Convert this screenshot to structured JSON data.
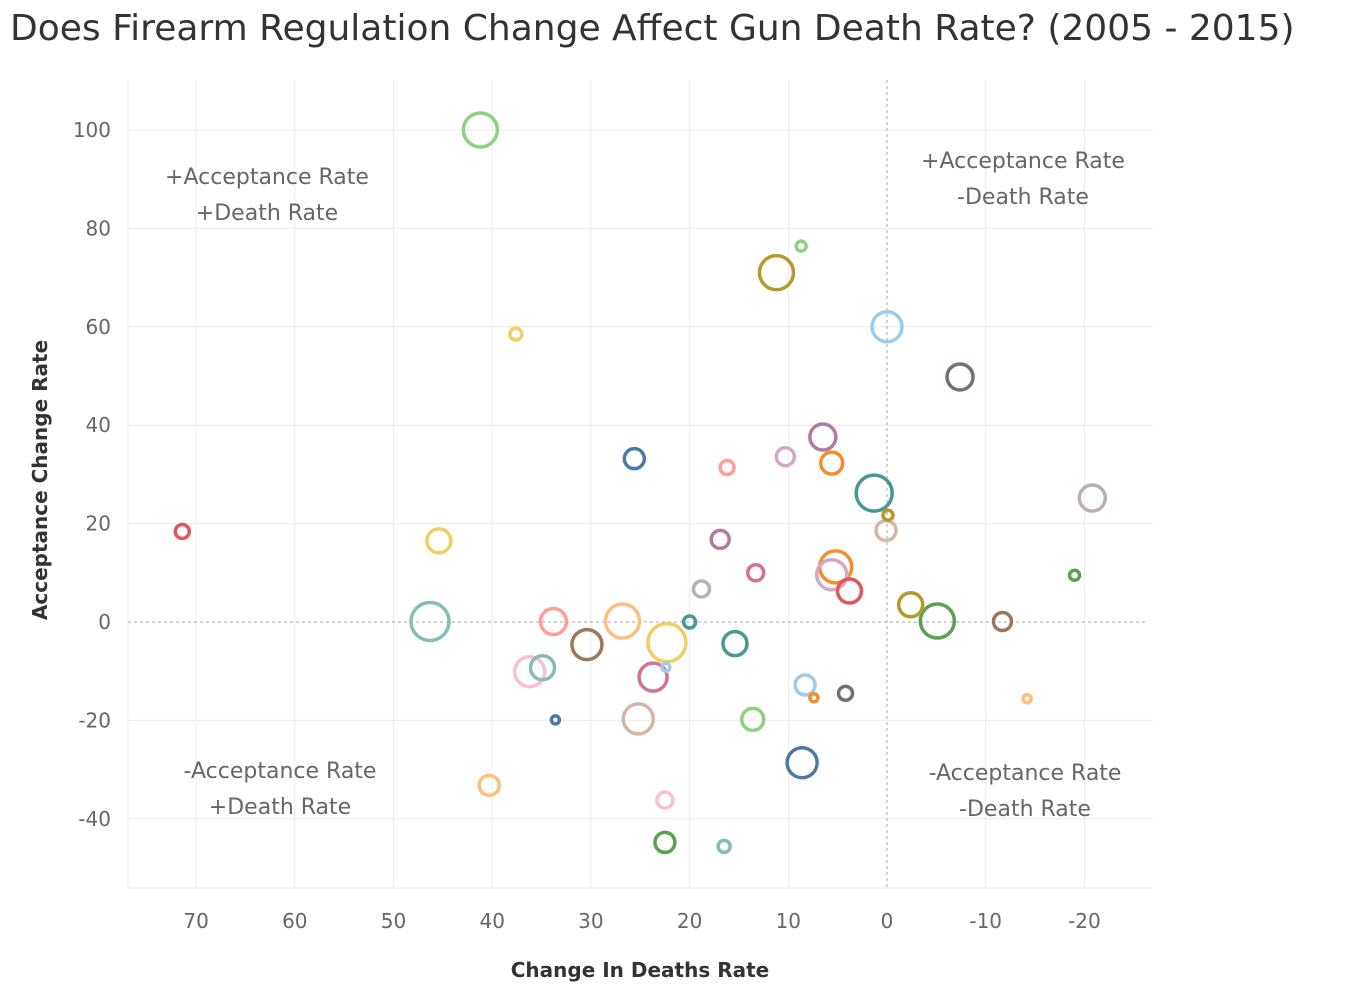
{
  "chart_data": {
    "type": "scatter",
    "title": "Does Firearm Regulation Change Affect Gun Death Rate? (2005 - 2015)",
    "xlabel": "Change In Deaths Rate",
    "ylabel": "Acceptance Change Rate",
    "xlim": [
      77,
      -27
    ],
    "ylim": [
      -55,
      110
    ],
    "x_reversed": true,
    "xticks": [
      70,
      60,
      50,
      40,
      30,
      20,
      10,
      0,
      -10,
      -20
    ],
    "yticks": [
      100,
      80,
      60,
      40,
      20,
      0,
      -20,
      -40
    ],
    "reference_lines": {
      "x": 0,
      "y": 0
    },
    "quadrant_labels": [
      {
        "line1": "+Acceptance Rate",
        "line2": "+Death Rate",
        "position": "top-left"
      },
      {
        "line1": "+Acceptance Rate",
        "line2": "-Death Rate",
        "position": "top-right"
      },
      {
        "line1": "-Acceptance Rate",
        "line2": "+Death Rate",
        "position": "bottom-left"
      },
      {
        "line1": "-Acceptance Rate",
        "line2": "-Death Rate",
        "position": "bottom-right"
      }
    ],
    "points": [
      {
        "x": 41.2,
        "y": 100.0,
        "size": 17,
        "color": "#8cd17d"
      },
      {
        "x": 8.7,
        "y": 76.4,
        "size": 5,
        "color": "#8cd17d"
      },
      {
        "x": 11.2,
        "y": 71.0,
        "size": 17,
        "color": "#b6992d"
      },
      {
        "x": 37.6,
        "y": 58.5,
        "size": 6,
        "color": "#f1ce63"
      },
      {
        "x": 0.0,
        "y": 60.0,
        "size": 15,
        "color": "#a0cbe8"
      },
      {
        "x": -7.4,
        "y": 49.8,
        "size": 13,
        "color": "#79706e"
      },
      {
        "x": 6.5,
        "y": 37.6,
        "size": 13,
        "color": "#b07aa1"
      },
      {
        "x": 25.6,
        "y": 33.2,
        "size": 10,
        "color": "#4e79a7"
      },
      {
        "x": 16.2,
        "y": 31.4,
        "size": 7,
        "color": "#ff9d9a"
      },
      {
        "x": 10.3,
        "y": 33.6,
        "size": 9,
        "color": "#d4a6c8"
      },
      {
        "x": 5.6,
        "y": 32.3,
        "size": 11,
        "color": "#f28e2b"
      },
      {
        "x": 1.3,
        "y": 26.2,
        "size": 18,
        "color": "#499894"
      },
      {
        "x": -20.8,
        "y": 25.2,
        "size": 13,
        "color": "#bab0ac"
      },
      {
        "x": -0.1,
        "y": 21.7,
        "size": 5,
        "color": "#b6992d"
      },
      {
        "x": 0.1,
        "y": 18.6,
        "size": 10,
        "color": "#d7b5a6"
      },
      {
        "x": 71.4,
        "y": 18.4,
        "size": 7,
        "color": "#e15759"
      },
      {
        "x": 45.4,
        "y": 16.5,
        "size": 12,
        "color": "#f1ce63"
      },
      {
        "x": 16.9,
        "y": 16.8,
        "size": 9,
        "color": "#b07aa1"
      },
      {
        "x": 13.3,
        "y": 10.0,
        "size": 8,
        "color": "#d37295"
      },
      {
        "x": 5.2,
        "y": 11.2,
        "size": 16,
        "color": "#f28e2b"
      },
      {
        "x": 5.6,
        "y": 9.6,
        "size": 15,
        "color": "#d4a6c8"
      },
      {
        "x": 3.8,
        "y": 6.3,
        "size": 12,
        "color": "#e15759"
      },
      {
        "x": 18.8,
        "y": 6.7,
        "size": 8,
        "color": "#bab0ac"
      },
      {
        "x": -19.0,
        "y": 9.5,
        "size": 5,
        "color": "#59a14f"
      },
      {
        "x": -2.4,
        "y": 3.5,
        "size": 12,
        "color": "#b6992d"
      },
      {
        "x": 46.3,
        "y": 0.1,
        "size": 19,
        "color": "#86bcb6"
      },
      {
        "x": 33.8,
        "y": 0.1,
        "size": 13,
        "color": "#ff9d9a"
      },
      {
        "x": 26.8,
        "y": 0.2,
        "size": 17,
        "color": "#ffbe7d"
      },
      {
        "x": 20.0,
        "y": 0.0,
        "size": 6,
        "color": "#499894"
      },
      {
        "x": -5.1,
        "y": 0.2,
        "size": 17,
        "color": "#59a14f"
      },
      {
        "x": -11.7,
        "y": 0.1,
        "size": 9,
        "color": "#9c755f"
      },
      {
        "x": 30.4,
        "y": -4.6,
        "size": 15,
        "color": "#9d7660"
      },
      {
        "x": 22.3,
        "y": -4.2,
        "size": 19,
        "color": "#f1ce63"
      },
      {
        "x": 15.4,
        "y": -4.4,
        "size": 12,
        "color": "#499894"
      },
      {
        "x": 36.2,
        "y": -10.1,
        "size": 15,
        "color": "#fabfd2"
      },
      {
        "x": 34.9,
        "y": -9.3,
        "size": 12,
        "color": "#86bcb6"
      },
      {
        "x": 23.7,
        "y": -11.2,
        "size": 14,
        "color": "#d37295"
      },
      {
        "x": 22.4,
        "y": -9.2,
        "size": 4,
        "color": "#a0cbe8"
      },
      {
        "x": 8.3,
        "y": -12.8,
        "size": 10,
        "color": "#a0cbe8"
      },
      {
        "x": 7.4,
        "y": -15.4,
        "size": 4,
        "color": "#f28e2b"
      },
      {
        "x": 4.2,
        "y": -14.5,
        "size": 7,
        "color": "#79706e"
      },
      {
        "x": -14.2,
        "y": -15.6,
        "size": 4,
        "color": "#ffbe7d"
      },
      {
        "x": 33.6,
        "y": -19.9,
        "size": 4,
        "color": "#4e79a7"
      },
      {
        "x": 25.2,
        "y": -19.7,
        "size": 15,
        "color": "#d7b5a6"
      },
      {
        "x": 13.6,
        "y": -19.8,
        "size": 11,
        "color": "#8cd17d"
      },
      {
        "x": 8.6,
        "y": -28.6,
        "size": 15,
        "color": "#4e79a7"
      },
      {
        "x": 40.3,
        "y": -33.2,
        "size": 10,
        "color": "#ffbe7d"
      },
      {
        "x": 22.5,
        "y": -36.2,
        "size": 8,
        "color": "#fabfd2"
      },
      {
        "x": 22.5,
        "y": -44.8,
        "size": 10,
        "color": "#59a14f"
      },
      {
        "x": 16.5,
        "y": -45.6,
        "size": 6,
        "color": "#86bcb6"
      }
    ]
  }
}
